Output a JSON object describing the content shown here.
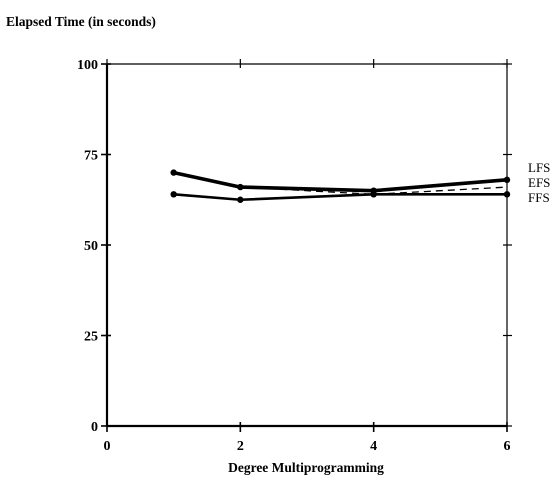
{
  "chart_data": {
    "type": "line",
    "title": "Elapsed Time (in seconds)",
    "xlabel": "Degree Multiprogramming",
    "ylabel": "",
    "xlim": [
      0,
      6
    ],
    "ylim": [
      0,
      100
    ],
    "x_ticks": [
      0,
      2,
      4,
      6
    ],
    "y_ticks": [
      0,
      25,
      50,
      75,
      100
    ],
    "grid": false,
    "legend_position": "right",
    "series": [
      {
        "name": "LFS",
        "x": [
          1,
          2,
          4,
          6
        ],
        "y": [
          70,
          66,
          65,
          68
        ],
        "style": "solid-bold",
        "color": "#000000"
      },
      {
        "name": "EFS",
        "x": [
          1,
          2,
          4,
          6
        ],
        "y": [
          70,
          66,
          64,
          66
        ],
        "style": "dashed",
        "color": "#000000"
      },
      {
        "name": "FFS",
        "x": [
          1,
          2,
          4,
          6
        ],
        "y": [
          64,
          62.5,
          64,
          64
        ],
        "style": "solid",
        "color": "#000000"
      }
    ]
  }
}
